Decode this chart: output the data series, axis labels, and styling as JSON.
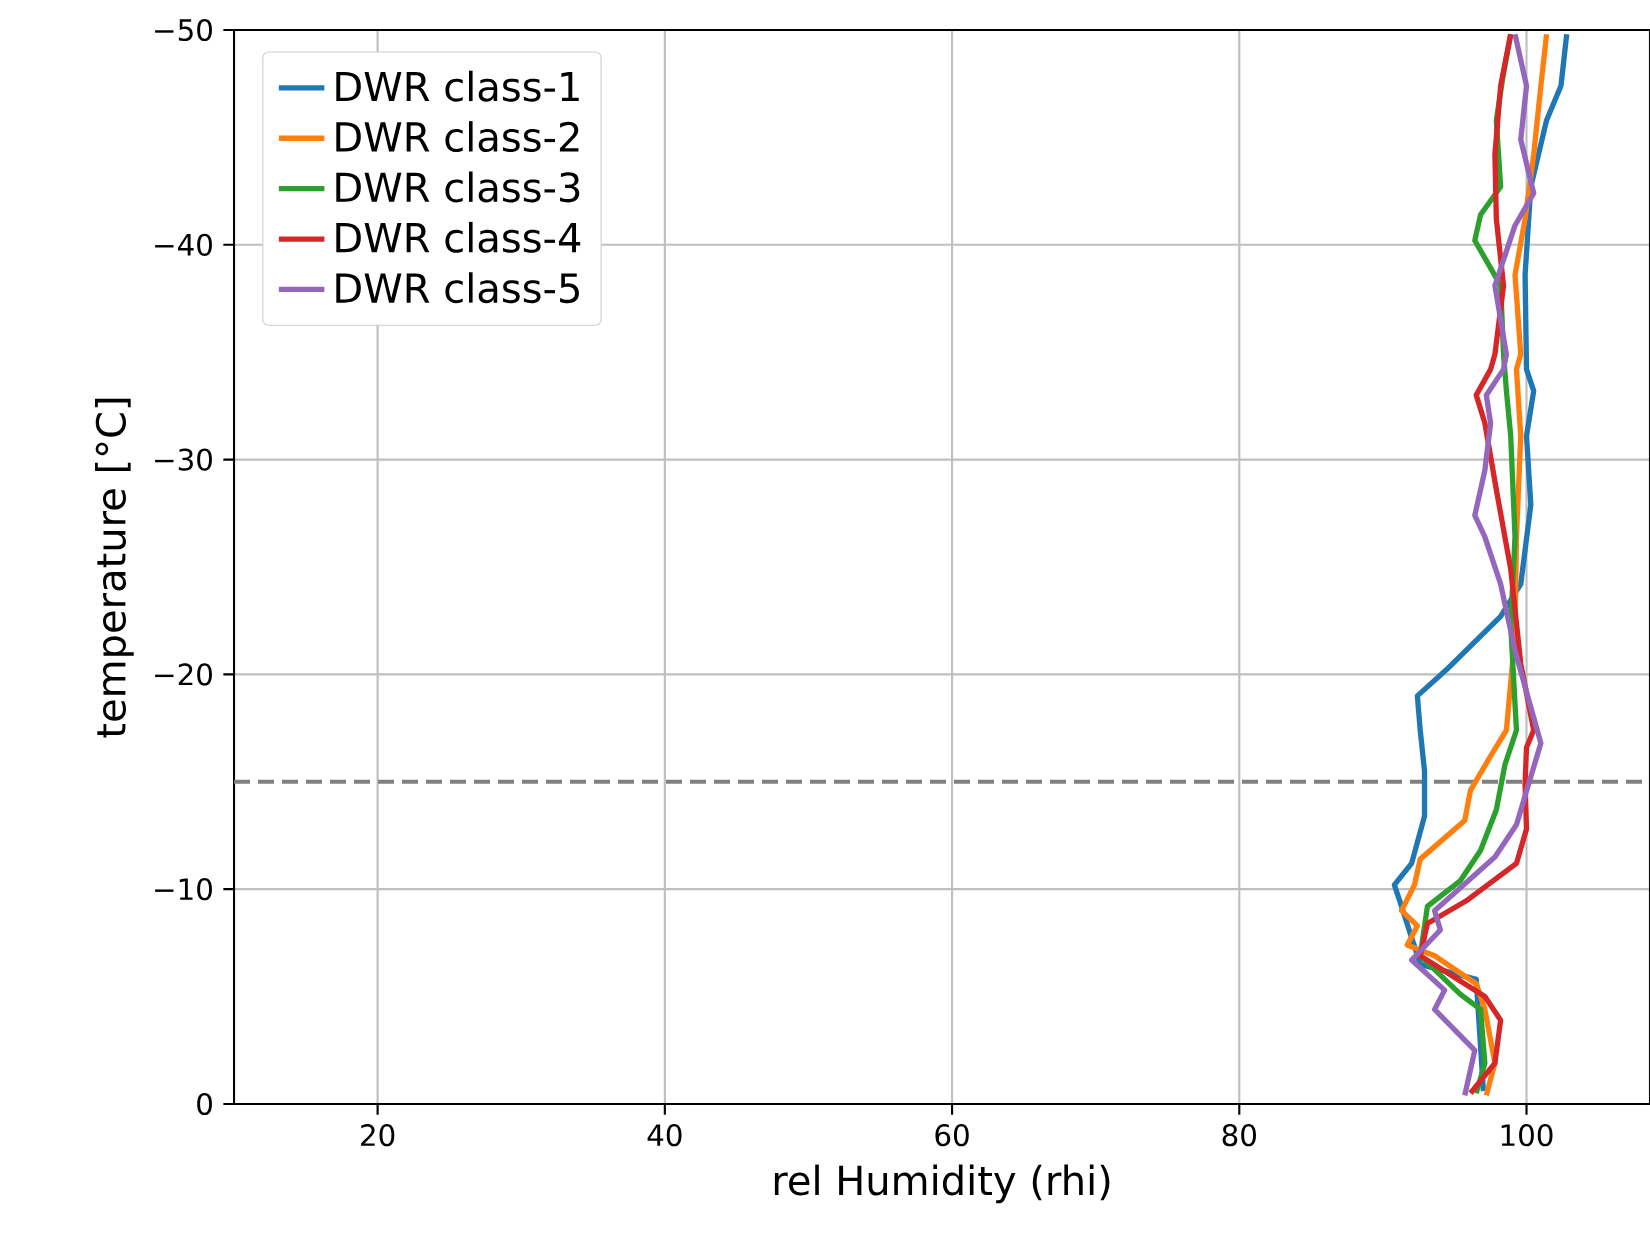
{
  "chart_data": {
    "type": "line",
    "xlabel": "rel Humidity (rhi)",
    "ylabel": "temperature [°C]",
    "xlim": [
      10,
      108.6
    ],
    "ylim": [
      0,
      -50
    ],
    "xticks": [
      20,
      40,
      60,
      80,
      100
    ],
    "yticks": [
      {
        "value": 0,
        "label": "0"
      },
      {
        "value": -10,
        "label": "−10"
      },
      {
        "value": -20,
        "label": "−20"
      },
      {
        "value": -30,
        "label": "−30"
      },
      {
        "value": -40,
        "label": "−40"
      },
      {
        "value": -50,
        "label": "−50"
      }
    ],
    "grid": true,
    "legend": "top left",
    "line_style": "solid",
    "ref_lines": [
      {
        "axis": "y",
        "value": -15,
        "color": "#808080",
        "line_style": "dashed"
      }
    ],
    "series": [
      {
        "name": "DWR class-1",
        "color": "#1f77b4",
        "x": [
          97.0,
          96.5,
          92.6,
          91.3,
          90.8,
          92.0,
          92.9,
          92.9,
          92.6,
          92.4,
          94.4,
          98.2,
          99.6,
          100.3,
          100.0,
          100.5,
          100.0,
          99.9,
          100.3,
          101.4,
          102.4,
          102.8
        ],
        "values": [
          -0.6,
          -5.8,
          -6.5,
          -9.2,
          -10.2,
          -11.2,
          -13.4,
          -15.5,
          -17.4,
          -19.0,
          -20.2,
          -22.7,
          -24.2,
          -27.9,
          -31.1,
          -33.2,
          -34.2,
          -38.6,
          -42.7,
          -45.8,
          -47.4,
          -49.8
        ]
      },
      {
        "name": "DWR class-2",
        "color": "#ff7f0e",
        "x": [
          97.2,
          97.8,
          97.1,
          96.5,
          93.6,
          91.7,
          92.4,
          91.3,
          92.2,
          92.6,
          95.7,
          96.1,
          97.5,
          98.6,
          99.2,
          99.3,
          99.6,
          99.3,
          99.6,
          99.2,
          99.9,
          100.5,
          101.0,
          101.4
        ],
        "values": [
          -0.4,
          -1.9,
          -4.4,
          -5.6,
          -6.9,
          -7.4,
          -8.3,
          -9.0,
          -10.2,
          -11.4,
          -13.2,
          -14.6,
          -16.2,
          -17.4,
          -21.8,
          -26.4,
          -31.1,
          -34.2,
          -34.9,
          -38.6,
          -41.2,
          -44.2,
          -47.4,
          -49.8
        ]
      },
      {
        "name": "DWR class-3",
        "color": "#2ca02c",
        "x": [
          96.5,
          97.1,
          96.8,
          95.4,
          92.6,
          93.1,
          95.4,
          96.8,
          97.9,
          98.5,
          99.3,
          99.2,
          98.9,
          99.2,
          98.9,
          98.6,
          98.4,
          98.2,
          96.4,
          96.8,
          98.2,
          97.9,
          98.4,
          98.9
        ],
        "values": [
          -0.5,
          -1.9,
          -4.4,
          -5.1,
          -6.9,
          -9.2,
          -10.4,
          -11.8,
          -13.7,
          -15.8,
          -17.4,
          -18.6,
          -22.3,
          -26.4,
          -31.1,
          -33.2,
          -34.9,
          -38.1,
          -40.2,
          -41.4,
          -42.7,
          -45.8,
          -48.0,
          -49.8
        ]
      },
      {
        "name": "DWR class-4",
        "color": "#d62728",
        "x": [
          96.1,
          97.8,
          98.2,
          97.1,
          92.6,
          93.1,
          95.9,
          99.3,
          100.0,
          99.9,
          100.0,
          100.5,
          99.6,
          98.9,
          97.9,
          97.1,
          96.5,
          97.5,
          97.8,
          98.4,
          97.9,
          97.8,
          98.2,
          98.9
        ],
        "values": [
          -0.5,
          -1.9,
          -3.9,
          -5.0,
          -6.9,
          -8.4,
          -9.5,
          -11.2,
          -12.8,
          -14.9,
          -16.6,
          -17.4,
          -20.5,
          -24.9,
          -28.6,
          -31.7,
          -33.0,
          -34.2,
          -34.9,
          -38.1,
          -41.2,
          -44.2,
          -47.4,
          -49.8
        ]
      },
      {
        "name": "DWR class-5",
        "color": "#9467bd",
        "x": [
          95.7,
          96.4,
          93.6,
          94.3,
          92.0,
          94.0,
          93.6,
          97.8,
          99.3,
          101.0,
          100.5,
          99.2,
          98.2,
          97.1,
          96.4,
          97.1,
          97.5,
          97.2,
          98.4,
          98.6,
          97.8,
          99.2,
          100.5,
          99.6,
          100.0,
          99.2
        ],
        "values": [
          -0.4,
          -2.5,
          -4.4,
          -5.3,
          -6.7,
          -8.1,
          -9.0,
          -11.5,
          -13.0,
          -16.8,
          -18.0,
          -21.1,
          -24.2,
          -26.4,
          -27.4,
          -29.5,
          -31.7,
          -33.0,
          -34.2,
          -34.9,
          -38.1,
          -40.9,
          -42.4,
          -44.9,
          -47.4,
          -49.8
        ]
      }
    ]
  }
}
